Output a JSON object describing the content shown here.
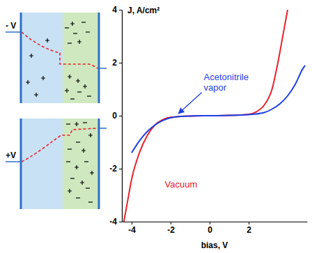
{
  "chart_data": {
    "type": "line",
    "xlabel": "bias, V",
    "ylabel": "J, A/cm²",
    "xlim": [
      -4.5,
      5.0
    ],
    "ylim": [
      -4,
      4
    ],
    "xticks": [
      -4,
      -2,
      0,
      2
    ],
    "yticks": [
      -4,
      -2,
      0,
      2,
      4
    ],
    "grid": false,
    "series": [
      {
        "name": "Vacuum",
        "color": "#e8202a",
        "x": [
          -4.4,
          -4.2,
          -4.0,
          -3.6,
          -3.2,
          -2.8,
          -2.4,
          -2.0,
          -1.0,
          0.0,
          1.0,
          2.0,
          2.4,
          2.8,
          3.2,
          3.5,
          3.8,
          4.0
        ],
        "values": [
          -4.0,
          -3.2,
          -2.4,
          -1.4,
          -0.75,
          -0.35,
          -0.15,
          -0.06,
          -0.01,
          0.0,
          0.01,
          0.05,
          0.15,
          0.4,
          1.0,
          2.0,
          3.2,
          4.0
        ]
      },
      {
        "name": "Acetonitrile vapor",
        "color": "#1e3fe6",
        "x": [
          -4.0,
          -3.6,
          -3.2,
          -2.8,
          -2.4,
          -2.0,
          -1.6,
          -1.0,
          0.0,
          1.0,
          2.0,
          2.8,
          3.2,
          3.6,
          4.0,
          4.4,
          4.8,
          4.9
        ],
        "values": [
          -1.4,
          -0.95,
          -0.6,
          -0.35,
          -0.18,
          -0.08,
          -0.03,
          -0.01,
          0.0,
          0.01,
          0.04,
          0.12,
          0.25,
          0.45,
          0.75,
          1.2,
          1.8,
          1.9
        ]
      }
    ]
  },
  "diagram": {
    "panels": [
      {
        "bias_label": "- V"
      },
      {
        "bias_label": "+V"
      }
    ]
  }
}
